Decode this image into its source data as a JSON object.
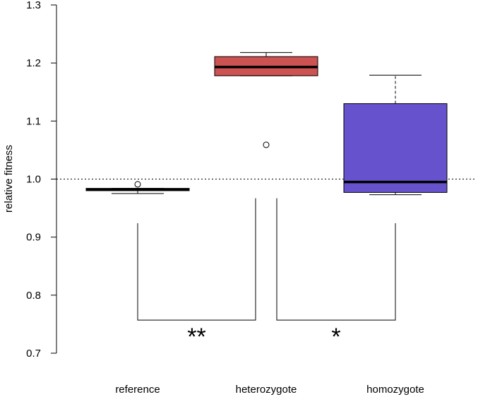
{
  "chart_data": {
    "type": "boxplot",
    "ylabel": "relative fitness",
    "ylim": [
      0.7,
      1.3
    ],
    "yticks": [
      "0.7",
      "0.8",
      "0.9",
      "1.0",
      "1.1",
      "1.2",
      "1.3"
    ],
    "reference_line": 1.0,
    "categories": [
      "reference",
      "heterozygote",
      "homozygote"
    ],
    "boxes": [
      {
        "category": "reference",
        "color": "#000000",
        "lower_whisker": 0.975,
        "q1": 0.98,
        "median": 0.982,
        "q3": 0.984,
        "upper_whisker": 0.984,
        "outliers": [
          0.991
        ]
      },
      {
        "category": "heterozygote",
        "color": "#cd5252",
        "lower_whisker": 1.178,
        "q1": 1.178,
        "median": 1.193,
        "q3": 1.211,
        "upper_whisker": 1.218,
        "outliers": [
          1.059
        ]
      },
      {
        "category": "homozygote",
        "color": "#6652cd",
        "lower_whisker": 0.973,
        "q1": 0.977,
        "median": 0.995,
        "q3": 1.13,
        "upper_whisker": 1.179,
        "outliers": []
      }
    ],
    "significance": [
      {
        "from": "reference",
        "to": "heterozygote",
        "label": "**",
        "bar_y": 0.757,
        "left_top": 0.924,
        "right_top": 0.967
      },
      {
        "from": "heterozygote",
        "to": "homozygote",
        "label": "*",
        "bar_y": 0.757,
        "left_top": 0.967,
        "right_top": 0.924
      }
    ]
  }
}
